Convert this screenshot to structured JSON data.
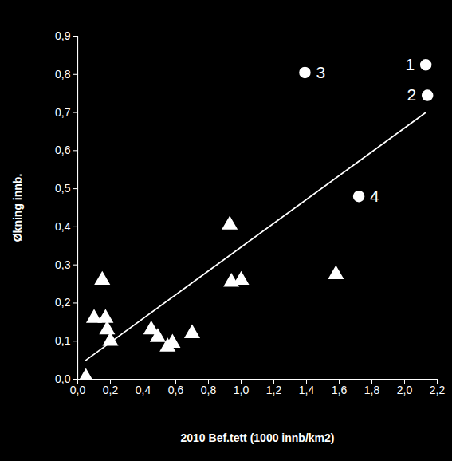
{
  "chart_data": {
    "type": "scatter",
    "x_label": "2010 Bef.tett (1000 innb/km2)",
    "y_label": "Økning innb.",
    "xlim": [
      0,
      2.2
    ],
    "ylim": [
      0,
      0.9
    ],
    "xticks": [
      {
        "value": 0,
        "label": "0,0"
      },
      {
        "value": 0.2,
        "label": "0,2"
      },
      {
        "value": 0.4,
        "label": "0,4"
      },
      {
        "value": 0.6,
        "label": "0,6"
      },
      {
        "value": 0.8,
        "label": "0,8"
      },
      {
        "value": 1.0,
        "label": "1,0"
      },
      {
        "value": 1.2,
        "label": "1,2"
      },
      {
        "value": 1.4,
        "label": "1,4"
      },
      {
        "value": 1.6,
        "label": "1,6"
      },
      {
        "value": 1.8,
        "label": "1,8"
      },
      {
        "value": 2.0,
        "label": "2,0"
      },
      {
        "value": 2.2,
        "label": "2,2"
      }
    ],
    "yticks": [
      {
        "value": 0,
        "label": "0,0"
      },
      {
        "value": 0.1,
        "label": "0,1"
      },
      {
        "value": 0.2,
        "label": "0,2"
      },
      {
        "value": 0.3,
        "label": "0,3"
      },
      {
        "value": 0.4,
        "label": "0,4"
      },
      {
        "value": 0.5,
        "label": "0,5"
      },
      {
        "value": 0.6,
        "label": "0,6"
      },
      {
        "value": 0.7,
        "label": "0,7"
      },
      {
        "value": 0.8,
        "label": "0,8"
      },
      {
        "value": 0.9,
        "label": "0,9"
      }
    ],
    "grid": false,
    "series": [
      {
        "type": "scatter",
        "marker": "triangle",
        "color": "#ffffff",
        "x": [
          0.05,
          0.1,
          0.15,
          0.17,
          0.18,
          0.2,
          0.45,
          0.49,
          0.55,
          0.58,
          0.7,
          0.93,
          0.94,
          1.0,
          1.58
        ],
        "values": [
          0.005,
          0.16,
          0.26,
          0.16,
          0.13,
          0.1,
          0.13,
          0.11,
          0.085,
          0.095,
          0.12,
          0.405,
          0.255,
          0.26,
          0.275
        ]
      },
      {
        "type": "scatter",
        "marker": "circle",
        "color": "#ffffff",
        "x": [
          2.13,
          2.14,
          1.39,
          1.72
        ],
        "values": [
          0.825,
          0.745,
          0.805,
          0.48
        ],
        "labels": [
          "1",
          "2",
          "3",
          "4"
        ]
      },
      {
        "type": "line",
        "line_style": "solid",
        "color": "#ffffff",
        "x": [
          0.05,
          2.13
        ],
        "values": [
          0.05,
          0.7
        ]
      }
    ]
  }
}
